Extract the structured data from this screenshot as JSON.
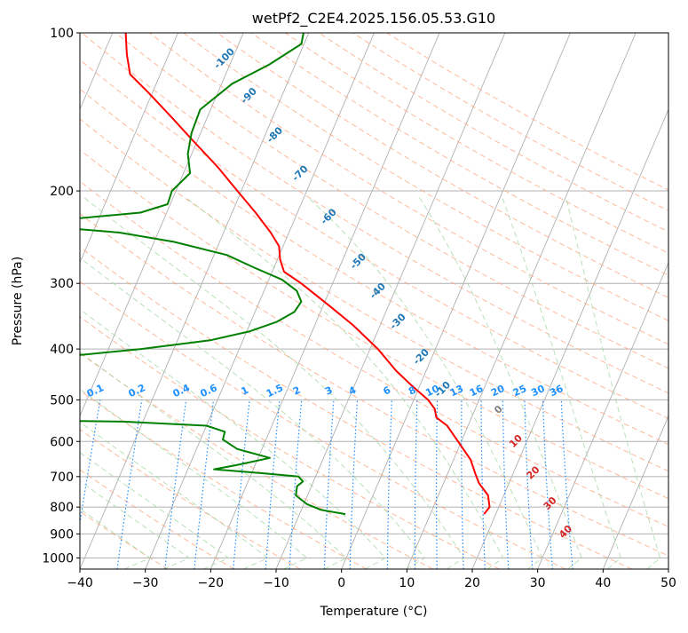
{
  "chart_data": {
    "type": "line",
    "title": "wetPf2_C2E4.2025.156.05.53.G10",
    "xlabel": "Temperature (°C)",
    "ylabel": "Pressure (hPa)",
    "xlim": [
      -40,
      50
    ],
    "ylim": [
      1050,
      100
    ],
    "y_scale": "log",
    "grid": true,
    "x_ticks": [
      -40,
      -30,
      -20,
      -10,
      0,
      10,
      20,
      30,
      40,
      50
    ],
    "y_ticks": [
      1000,
      900,
      800,
      700,
      600,
      500,
      400,
      300,
      200,
      100
    ],
    "colors": {
      "temperature": "#ff0000",
      "dewpoint": "#008000",
      "isotherm": "#b0b0b0",
      "dry_adiabat": "#ffa07a",
      "moist_adiabat": "#a8d8a8",
      "mixing_ratio": "#1e90ff",
      "theta_label": "#1f77b4",
      "warm_label": "#d62728",
      "zero_label": "#808080",
      "grid": "#b0b0b0"
    },
    "series": [
      {
        "key": "temperature",
        "points": [
          {
            "p": 825,
            "t": 18.2
          },
          {
            "p": 800,
            "t": 18.6
          },
          {
            "p": 760,
            "t": 17.6
          },
          {
            "p": 720,
            "t": 15.4
          },
          {
            "p": 690,
            "t": 14.2
          },
          {
            "p": 650,
            "t": 12.6
          },
          {
            "p": 600,
            "t": 9.5
          },
          {
            "p": 560,
            "t": 6.8
          },
          {
            "p": 540,
            "t": 4.6
          },
          {
            "p": 520,
            "t": 3.8
          },
          {
            "p": 500,
            "t": 2.2
          },
          {
            "p": 470,
            "t": -1.2
          },
          {
            "p": 440,
            "t": -4.6
          },
          {
            "p": 400,
            "t": -8.8
          },
          {
            "p": 360,
            "t": -14.2
          },
          {
            "p": 330,
            "t": -19.2
          },
          {
            "p": 300,
            "t": -24.8
          },
          {
            "p": 285,
            "t": -28.2
          },
          {
            "p": 270,
            "t": -29.6
          },
          {
            "p": 255,
            "t": -30.6
          },
          {
            "p": 240,
            "t": -32.8
          },
          {
            "p": 220,
            "t": -36.4
          },
          {
            "p": 200,
            "t": -40.6
          },
          {
            "p": 180,
            "t": -45.2
          },
          {
            "p": 160,
            "t": -50.8
          },
          {
            "p": 145,
            "t": -55.4
          },
          {
            "p": 130,
            "t": -60.6
          },
          {
            "p": 120,
            "t": -64.6
          },
          {
            "p": 110,
            "t": -66.4
          },
          {
            "p": 100,
            "t": -68.0
          }
        ]
      },
      {
        "key": "dewpoint",
        "points": [
          {
            "p": 825,
            "t": -3.0
          },
          {
            "p": 810,
            "t": -7.0
          },
          {
            "p": 790,
            "t": -9.5
          },
          {
            "p": 760,
            "t": -11.8
          },
          {
            "p": 730,
            "t": -12.2
          },
          {
            "p": 715,
            "t": -11.6
          },
          {
            "p": 700,
            "t": -12.6
          },
          {
            "p": 690,
            "t": -18.0
          },
          {
            "p": 678,
            "t": -26.0
          },
          {
            "p": 666,
            "t": -23.0
          },
          {
            "p": 645,
            "t": -18.2
          },
          {
            "p": 620,
            "t": -23.8
          },
          {
            "p": 595,
            "t": -26.6
          },
          {
            "p": 575,
            "t": -26.8
          },
          {
            "p": 560,
            "t": -30.0
          },
          {
            "p": 550,
            "t": -43.0
          },
          {
            "p": 548,
            "t": -52.0
          },
          {
            "p": 452,
            "t": -68.5
          },
          {
            "p": 440,
            "t": -65.0
          },
          {
            "p": 425,
            "t": -62.8
          },
          {
            "p": 418,
            "t": -60.0
          },
          {
            "p": 400,
            "t": -45.0
          },
          {
            "p": 385,
            "t": -35.0
          },
          {
            "p": 370,
            "t": -29.5
          },
          {
            "p": 355,
            "t": -26.0
          },
          {
            "p": 340,
            "t": -24.0
          },
          {
            "p": 325,
            "t": -23.6
          },
          {
            "p": 310,
            "t": -25.0
          },
          {
            "p": 295,
            "t": -28.0
          },
          {
            "p": 280,
            "t": -33.0
          },
          {
            "p": 265,
            "t": -38.0
          },
          {
            "p": 250,
            "t": -47.0
          },
          {
            "p": 240,
            "t": -56.0
          },
          {
            "p": 232,
            "t": -70.8
          },
          {
            "p": 228,
            "t": -67.0
          },
          {
            "p": 220,
            "t": -54.0
          },
          {
            "p": 212,
            "t": -50.4
          },
          {
            "p": 200,
            "t": -50.6
          },
          {
            "p": 185,
            "t": -49.0
          },
          {
            "p": 170,
            "t": -50.6
          },
          {
            "p": 155,
            "t": -51.4
          },
          {
            "p": 140,
            "t": -51.6
          },
          {
            "p": 125,
            "t": -48.4
          },
          {
            "p": 115,
            "t": -44.0
          },
          {
            "p": 105,
            "t": -40.4
          },
          {
            "p": 100,
            "t": -40.8
          }
        ]
      }
    ],
    "theta_labels": [
      {
        "text": "-100",
        "p": 113
      },
      {
        "text": "-90",
        "p": 133
      },
      {
        "text": "-80",
        "p": 158
      },
      {
        "text": "-70",
        "p": 187
      },
      {
        "text": "-60",
        "p": 226
      },
      {
        "text": "-50",
        "p": 275
      },
      {
        "text": "-40",
        "p": 313
      },
      {
        "text": "-30",
        "p": 358
      },
      {
        "text": "-20",
        "p": 418
      },
      {
        "text": "-10",
        "p": 482
      }
    ],
    "mixing_ratio_labels": [
      "0.1",
      "0.2",
      "0.4",
      "0.6",
      "1",
      "1.5",
      "2",
      "3",
      "4",
      "6",
      "8",
      "10",
      "13",
      "16",
      "20",
      "25",
      "30",
      "36"
    ],
    "moist_labels": [
      {
        "text": "0",
        "p": 527,
        "tone": "zero"
      },
      {
        "text": "10",
        "p": 605,
        "tone": "warm"
      },
      {
        "text": "20",
        "p": 695,
        "tone": "warm"
      },
      {
        "text": "30",
        "p": 795,
        "tone": "warm"
      },
      {
        "text": "40",
        "p": 900,
        "tone": "warm"
      }
    ]
  }
}
